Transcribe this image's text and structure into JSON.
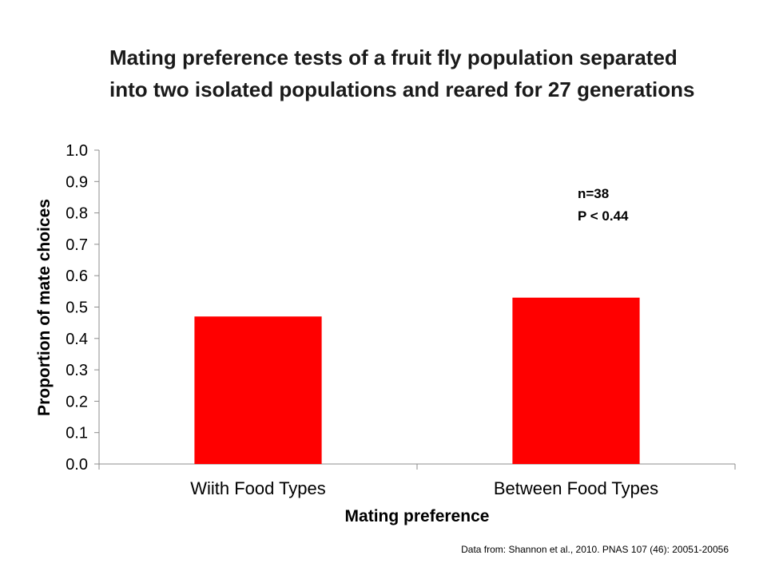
{
  "slide": {
    "title": "Mating preference tests of a fruit fly population separated into two isolated populations and reared for 27 generations",
    "source": "Data from: Shannon et al., 2010.   PNAS 107 (46): 20051-20056"
  },
  "chart_data": {
    "type": "bar",
    "title": "Mating preference tests of a fruit fly population separated into two isolated populations and reared for 27 generations",
    "categories": [
      "Wiith Food Types",
      "Between Food Types"
    ],
    "values": [
      0.47,
      0.53
    ],
    "xlabel": "Mating preference",
    "ylabel": "Proportion of mate choices",
    "ylim": [
      0,
      1.0
    ],
    "yticks": [
      "0.0",
      "0.1",
      "0.2",
      "0.3",
      "0.4",
      "0.5",
      "0.6",
      "0.7",
      "0.8",
      "0.9",
      "1.0"
    ],
    "annotations": [
      "n=38",
      "P < 0.44"
    ],
    "bar_color": "#ff0000",
    "grid": false,
    "legend": "none"
  }
}
